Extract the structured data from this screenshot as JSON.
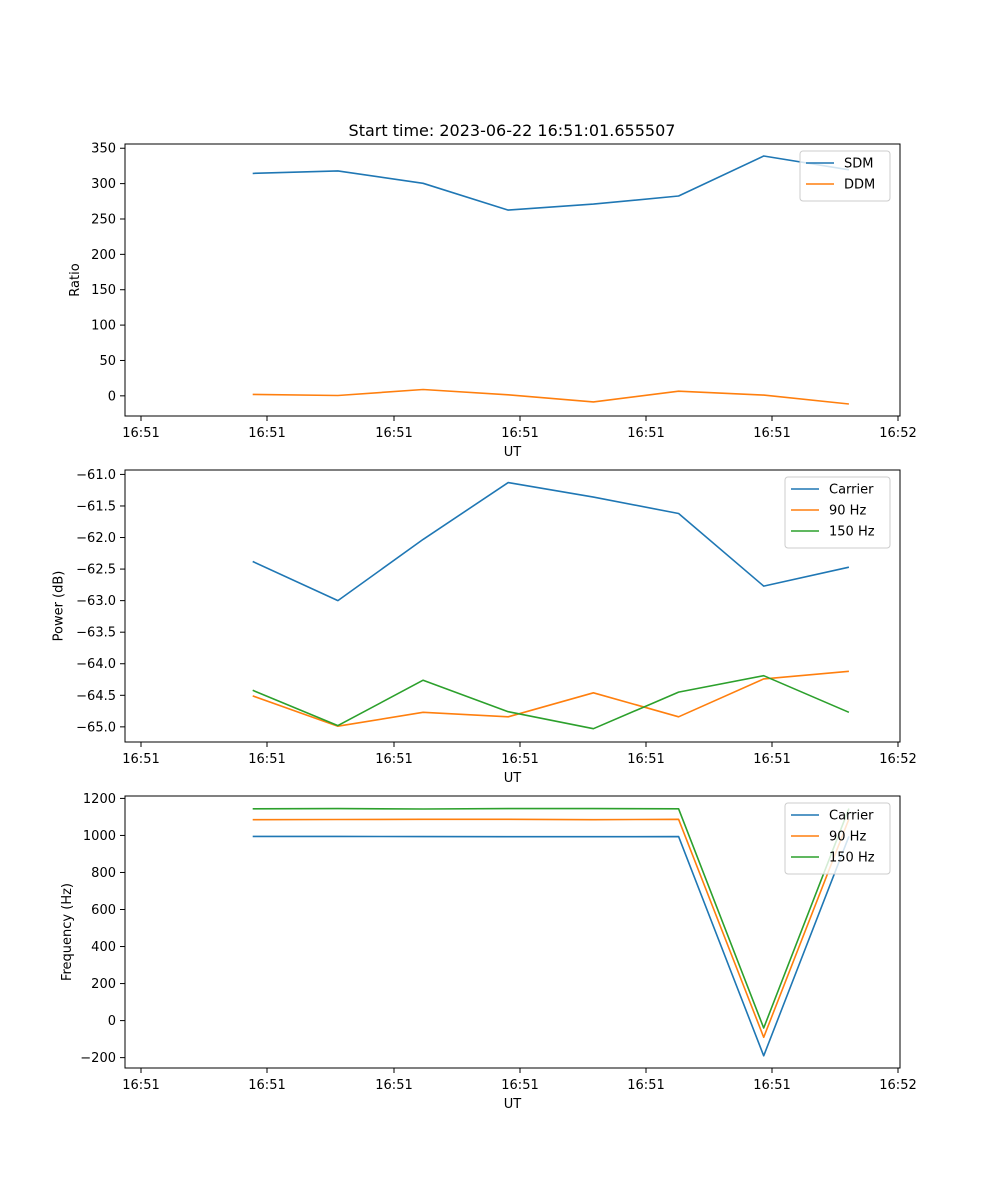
{
  "title": "Start time: 2023-06-22 16:51:01.655507",
  "colors": {
    "c0": "#1f77b4",
    "c1": "#ff7f0e",
    "c2": "#2ca02c"
  },
  "chart_data": [
    {
      "type": "line",
      "xlabel": "UT",
      "ylabel": "Ratio",
      "x_ticks": [
        "16:51",
        "16:51",
        "16:51",
        "16:51",
        "16:51",
        "16:51",
        "16:52"
      ],
      "xlim": [
        -0.5,
        8.6
      ],
      "x": [
        1,
        2,
        3,
        4,
        5,
        6,
        7,
        8
      ],
      "ylim": [
        -28.5,
        356
      ],
      "y_ticks": [
        0,
        50,
        100,
        150,
        200,
        250,
        300,
        350
      ],
      "y_tick_labels": [
        "0",
        "50",
        "100",
        "150",
        "200",
        "250",
        "300",
        "350"
      ],
      "legend": "top-right",
      "series": [
        {
          "name": "SDM",
          "color": "#1f77b4",
          "values": [
            314.5,
            318,
            300.5,
            262.5,
            271,
            282.5,
            339,
            319.5
          ]
        },
        {
          "name": "DDM",
          "color": "#ff7f0e",
          "values": [
            2,
            0.5,
            9,
            1.5,
            -8.5,
            6.5,
            1,
            -11.5
          ]
        }
      ]
    },
    {
      "type": "line",
      "xlabel": "UT",
      "ylabel": "Power (dB)",
      "x_ticks": [
        "16:51",
        "16:51",
        "16:51",
        "16:51",
        "16:51",
        "16:51",
        "16:52"
      ],
      "xlim": [
        -0.5,
        8.6
      ],
      "x": [
        1,
        2,
        3,
        4,
        5,
        6,
        7,
        8
      ],
      "ylim": [
        -65.24,
        -60.93
      ],
      "y_ticks": [
        -65.0,
        -64.5,
        -64.0,
        -63.5,
        -63.0,
        -62.5,
        -62.0,
        -61.5,
        -61.0
      ],
      "y_tick_labels": [
        "−65.0",
        "−64.5",
        "−64.0",
        "−63.5",
        "−63.0",
        "−62.5",
        "−62.0",
        "−61.5",
        "−61.0"
      ],
      "legend": "top-right",
      "series": [
        {
          "name": "Carrier",
          "color": "#1f77b4",
          "values": [
            -62.38,
            -63.0,
            -62.03,
            -61.13,
            -61.36,
            -61.62,
            -62.77,
            -62.47
          ]
        },
        {
          "name": "90 Hz",
          "color": "#ff7f0e",
          "values": [
            -64.51,
            -64.99,
            -64.77,
            -64.84,
            -64.46,
            -64.84,
            -64.24,
            -64.12
          ]
        },
        {
          "name": "150 Hz",
          "color": "#2ca02c",
          "values": [
            -64.42,
            -64.98,
            -64.26,
            -64.76,
            -65.03,
            -64.45,
            -64.19,
            -64.77
          ]
        }
      ]
    },
    {
      "type": "line",
      "xlabel": "UT",
      "ylabel": "Frequency (Hz)",
      "x_ticks": [
        "16:51",
        "16:51",
        "16:51",
        "16:51",
        "16:51",
        "16:51",
        "16:52"
      ],
      "xlim": [
        -0.5,
        8.6
      ],
      "x": [
        1,
        2,
        3,
        4,
        5,
        6,
        7,
        8
      ],
      "ylim": [
        -256,
        1213
      ],
      "y_ticks": [
        -200,
        0,
        200,
        400,
        600,
        800,
        1000,
        1200
      ],
      "y_tick_labels": [
        "−200",
        "0",
        "200",
        "400",
        "600",
        "800",
        "1000",
        "1200"
      ],
      "legend": "top-right",
      "series": [
        {
          "name": "Carrier",
          "color": "#1f77b4",
          "values": [
            995,
            995,
            994,
            993,
            993,
            994,
            -190,
            995
          ]
        },
        {
          "name": "90 Hz",
          "color": "#ff7f0e",
          "values": [
            1085,
            1086,
            1087,
            1087,
            1085,
            1087,
            -90,
            1088
          ]
        },
        {
          "name": "150 Hz",
          "color": "#2ca02c",
          "values": [
            1144,
            1145,
            1143,
            1145,
            1145,
            1144,
            -40,
            1145
          ]
        }
      ]
    }
  ]
}
